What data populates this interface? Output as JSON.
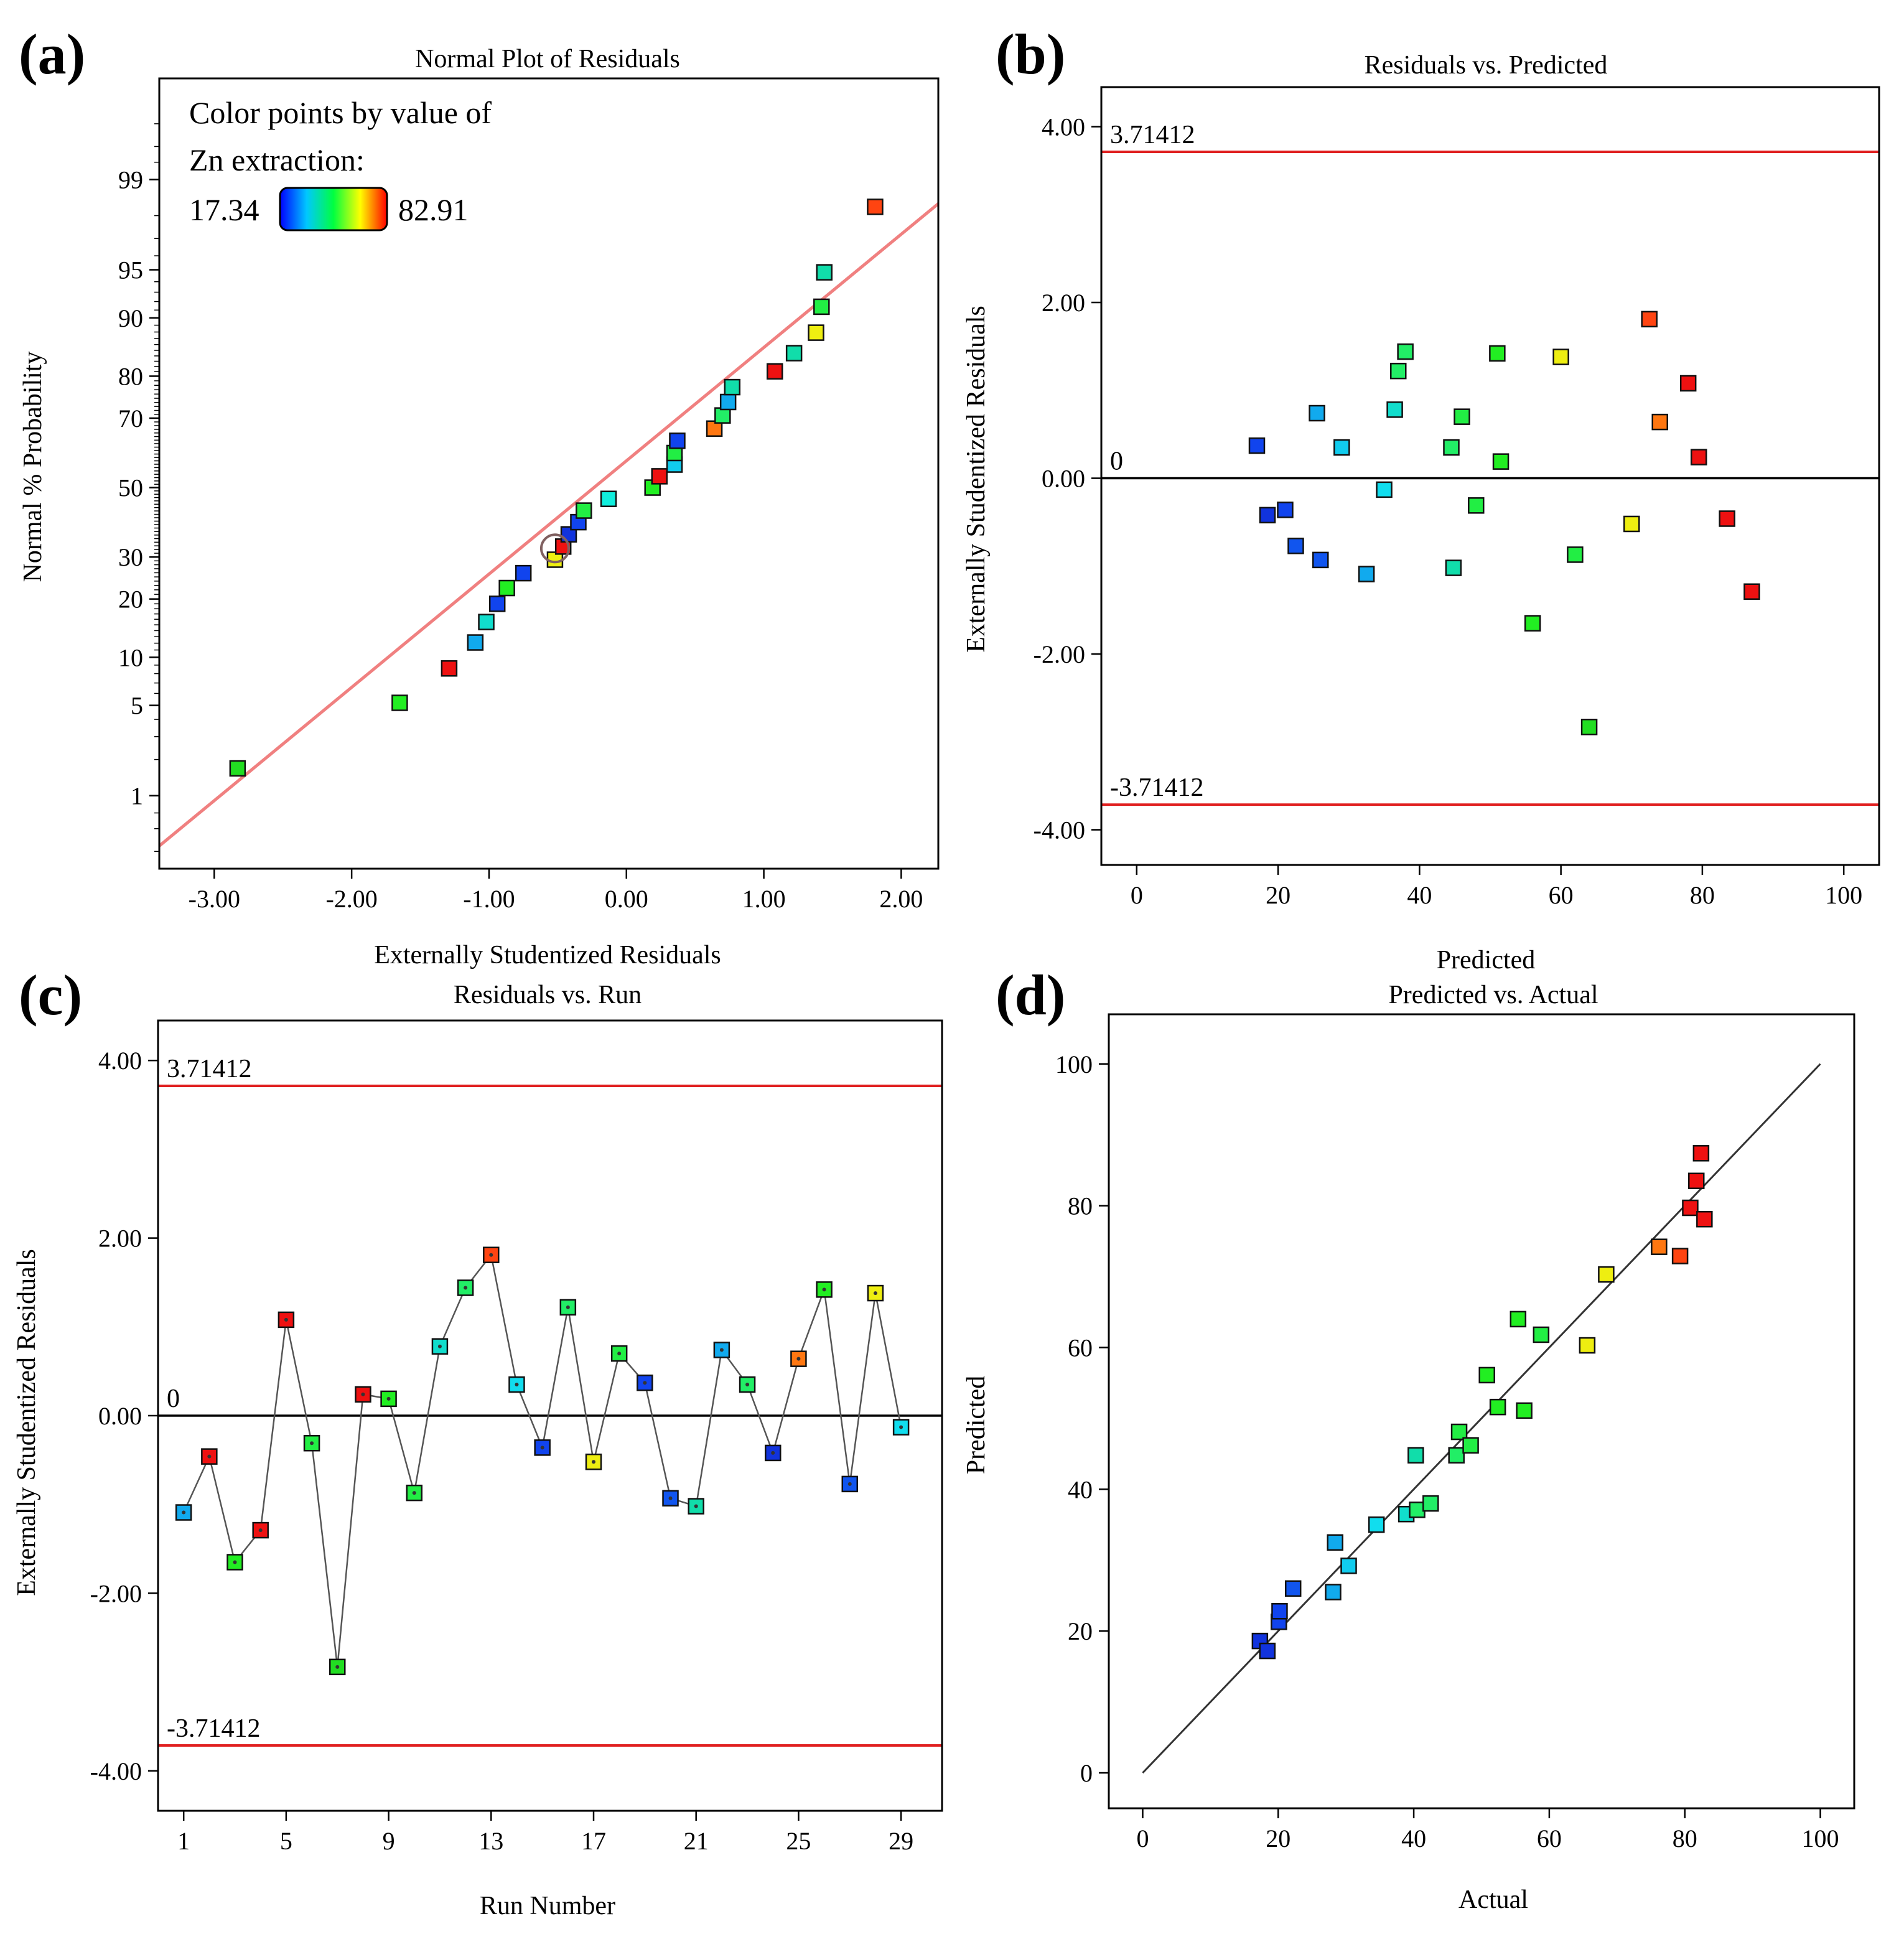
{
  "colors": {
    "fit_line": "#f08080",
    "limit_line": "#e02020",
    "zero_line": "#000000",
    "legend_low": "#2a2aff",
    "legend_high": "#ff2020"
  },
  "legend": {
    "title_line1": "Color points by value of",
    "title_line2": "Zn extraction:",
    "low_label": "17.34",
    "high_label": "82.91",
    "gradient": [
      "#0000ff",
      "#00c8ff",
      "#00ff40",
      "#ffff00",
      "#ff0000"
    ]
  },
  "chart_data": [
    {
      "id": "a",
      "panel_label": "(a)",
      "type": "scatter",
      "title": "Normal Plot of Residuals",
      "xlabel": "Externally Studentized Residuals",
      "ylabel": "Normal % Probability",
      "xlim": [
        -3.4,
        2.27
      ],
      "y_probability_scale": true,
      "ylim_probability": [
        0.2,
        99.9
      ],
      "xticks": [
        -3,
        -2,
        -1,
        0,
        1,
        2
      ],
      "xtick_labels": [
        "-3.00",
        "-2.00",
        "-1.00",
        "0.00",
        "1.00",
        "2.00"
      ],
      "yticks": [
        1,
        5,
        10,
        20,
        30,
        50,
        70,
        80,
        90,
        95,
        99
      ],
      "ytick_labels": [
        "1",
        "5",
        "10",
        "20",
        "30",
        "50",
        "70",
        "80",
        "90",
        "95",
        "99"
      ],
      "fit_line": {
        "x": [
          -3.4,
          2.27
        ],
        "prob": [
          0.34,
          98.4
        ]
      },
      "points": [
        {
          "x": -2.83,
          "p": 1.7,
          "color": "#22dd22"
        },
        {
          "x": -1.65,
          "p": 5.2,
          "color": "#22ee22"
        },
        {
          "x": -1.29,
          "p": 8.6,
          "color": "#ee1111"
        },
        {
          "x": -1.1,
          "p": 12.1,
          "color": "#11aaee"
        },
        {
          "x": -1.02,
          "p": 15.5,
          "color": "#11ddcc"
        },
        {
          "x": -0.94,
          "p": 19.0,
          "color": "#1144ee"
        },
        {
          "x": -0.87,
          "p": 22.4,
          "color": "#22ee22"
        },
        {
          "x": -0.75,
          "p": 25.9,
          "color": "#1144ee"
        },
        {
          "x": -0.52,
          "p": 29.3,
          "color": "#eeee11"
        },
        {
          "x": -0.46,
          "p": 32.8,
          "color": "#ee1111"
        },
        {
          "x": -0.42,
          "p": 36.2,
          "color": "#1133dd"
        },
        {
          "x": -0.35,
          "p": 39.7,
          "color": "#1144ee"
        },
        {
          "x": -0.31,
          "p": 43.1,
          "color": "#22ee44"
        },
        {
          "x": -0.13,
          "p": 46.6,
          "color": "#11eedd"
        },
        {
          "x": 0.19,
          "p": 50.0,
          "color": "#22ee22"
        },
        {
          "x": 0.24,
          "p": 53.4,
          "color": "#ee1111"
        },
        {
          "x": 0.35,
          "p": 56.9,
          "color": "#11ccee"
        },
        {
          "x": 0.35,
          "p": 60.3,
          "color": "#22ee44"
        },
        {
          "x": 0.37,
          "p": 63.8,
          "color": "#1144ee"
        },
        {
          "x": 0.64,
          "p": 67.2,
          "color": "#ff7711"
        },
        {
          "x": 0.7,
          "p": 70.7,
          "color": "#22ee66"
        },
        {
          "x": 0.74,
          "p": 74.1,
          "color": "#11aaee"
        },
        {
          "x": 0.77,
          "p": 77.6,
          "color": "#11ddaa"
        },
        {
          "x": 1.08,
          "p": 81.0,
          "color": "#ee1111"
        },
        {
          "x": 1.22,
          "p": 84.5,
          "color": "#11ddaa"
        },
        {
          "x": 1.38,
          "p": 87.9,
          "color": "#eeee11"
        },
        {
          "x": 1.42,
          "p": 91.4,
          "color": "#22ee44"
        },
        {
          "x": 1.44,
          "p": 94.8,
          "color": "#11ddaa"
        },
        {
          "x": 1.81,
          "p": 98.3,
          "color": "#ff4411"
        }
      ],
      "circled_point": {
        "x": -0.52,
        "p": 32.3
      }
    },
    {
      "id": "b",
      "panel_label": "(b)",
      "type": "scatter",
      "title": "Residuals vs. Predicted",
      "xlabel": "Predicted",
      "ylabel": "Externally Studentized Residuals",
      "xlim": [
        -5,
        105
      ],
      "ylim": [
        -4.4,
        4.45
      ],
      "xticks": [
        0,
        20,
        40,
        60,
        80,
        100
      ],
      "xtick_labels": [
        "0",
        "20",
        "40",
        "60",
        "80",
        "100"
      ],
      "yticks": [
        -4,
        -2,
        0,
        2,
        4
      ],
      "ytick_labels": [
        "-4.00",
        "-2.00",
        "0.00",
        "2.00",
        "4.00"
      ],
      "upper_limit": 3.71412,
      "upper_label": "3.71412",
      "lower_limit": -3.71412,
      "lower_label": "-3.71412",
      "zero_label": "0",
      "points": [
        {
          "x": 17.0,
          "y": 0.37,
          "color": "#1144ee"
        },
        {
          "x": 18.5,
          "y": -0.42,
          "color": "#1133dd"
        },
        {
          "x": 21.0,
          "y": -0.36,
          "color": "#1144ee"
        },
        {
          "x": 22.5,
          "y": -0.77,
          "color": "#1155ee"
        },
        {
          "x": 25.5,
          "y": 0.74,
          "color": "#11aaee"
        },
        {
          "x": 26.0,
          "y": -0.93,
          "color": "#1155ee"
        },
        {
          "x": 29.0,
          "y": 0.35,
          "color": "#11ccee"
        },
        {
          "x": 32.5,
          "y": -1.09,
          "color": "#11aaee"
        },
        {
          "x": 35.0,
          "y": -0.13,
          "color": "#11ddee"
        },
        {
          "x": 36.5,
          "y": 0.78,
          "color": "#11ddcc"
        },
        {
          "x": 37.0,
          "y": 1.22,
          "color": "#22ee66"
        },
        {
          "x": 38.0,
          "y": 1.44,
          "color": "#22ee66"
        },
        {
          "x": 44.5,
          "y": 0.35,
          "color": "#22ee66"
        },
        {
          "x": 44.8,
          "y": -1.02,
          "color": "#11ddaa"
        },
        {
          "x": 46.0,
          "y": 0.7,
          "color": "#22ee44"
        },
        {
          "x": 48.0,
          "y": -0.31,
          "color": "#22ee44"
        },
        {
          "x": 51.0,
          "y": 1.42,
          "color": "#22ee22"
        },
        {
          "x": 51.5,
          "y": 0.19,
          "color": "#22ee22"
        },
        {
          "x": 56.0,
          "y": -1.65,
          "color": "#22ee22"
        },
        {
          "x": 60.0,
          "y": 1.38,
          "color": "#eeee11"
        },
        {
          "x": 62.0,
          "y": -0.87,
          "color": "#22ee44"
        },
        {
          "x": 64.0,
          "y": -2.83,
          "color": "#22dd22"
        },
        {
          "x": 70.0,
          "y": -0.52,
          "color": "#eeee11"
        },
        {
          "x": 72.5,
          "y": 1.81,
          "color": "#ff4411"
        },
        {
          "x": 74.0,
          "y": 0.64,
          "color": "#ff7711"
        },
        {
          "x": 78.0,
          "y": 1.08,
          "color": "#ee1111"
        },
        {
          "x": 79.5,
          "y": 0.24,
          "color": "#ee1111"
        },
        {
          "x": 83.5,
          "y": -0.46,
          "color": "#ee1111"
        },
        {
          "x": 87.0,
          "y": -1.29,
          "color": "#ee1111"
        }
      ]
    },
    {
      "id": "c",
      "panel_label": "(c)",
      "type": "line",
      "title": "Residuals vs. Run",
      "xlabel": "Run Number",
      "ylabel": "Externally Studentized Residuals",
      "xlim": [
        0,
        30.6
      ],
      "ylim": [
        -4.45,
        4.45
      ],
      "xticks": [
        1,
        5,
        9,
        13,
        17,
        21,
        25,
        29
      ],
      "xtick_labels": [
        "1",
        "5",
        "9",
        "13",
        "17",
        "21",
        "25",
        "29"
      ],
      "yticks": [
        -4,
        -2,
        0,
        2,
        4
      ],
      "ytick_labels": [
        "-4.00",
        "-2.00",
        "0.00",
        "2.00",
        "4.00"
      ],
      "upper_limit": 3.71412,
      "upper_label": "3.71412",
      "lower_limit": -3.71412,
      "lower_label": "-3.71412",
      "zero_label": "0",
      "x": [
        1,
        2,
        3,
        4,
        5,
        6,
        7,
        8,
        9,
        10,
        11,
        12,
        13,
        14,
        15,
        16,
        17,
        18,
        19,
        20,
        21,
        22,
        23,
        24,
        25,
        26,
        27,
        28,
        29
      ],
      "values": [
        -1.09,
        -0.46,
        -1.65,
        -1.29,
        1.08,
        -0.31,
        -2.83,
        0.24,
        0.19,
        -0.87,
        0.78,
        1.44,
        1.81,
        0.35,
        -0.36,
        1.22,
        -0.52,
        0.7,
        0.37,
        -0.93,
        -1.02,
        0.74,
        0.35,
        -0.42,
        0.64,
        1.42,
        -0.77,
        1.38,
        -0.13
      ],
      "colors": [
        "#11aaee",
        "#ee1111",
        "#22ee22",
        "#ee1111",
        "#ee1111",
        "#22ee44",
        "#22dd22",
        "#ee1111",
        "#22ee22",
        "#22ee44",
        "#11ddcc",
        "#22ee66",
        "#ff4411",
        "#11ddee",
        "#1144ee",
        "#22ee66",
        "#eeee11",
        "#22ee44",
        "#1144ee",
        "#1155ee",
        "#11ddaa",
        "#11aaee",
        "#22ee66",
        "#1133dd",
        "#ff7711",
        "#22ee22",
        "#1155ee",
        "#eeee11",
        "#11ddee"
      ]
    },
    {
      "id": "d",
      "panel_label": "(d)",
      "type": "scatter",
      "title": "Predicted vs. Actual",
      "xlabel": "Actual",
      "ylabel": "Predicted",
      "xlim": [
        -5,
        105
      ],
      "ylim": [
        -5,
        107
      ],
      "xticks": [
        0,
        20,
        40,
        60,
        80,
        100
      ],
      "xtick_labels": [
        "0",
        "20",
        "40",
        "60",
        "80",
        "100"
      ],
      "yticks": [
        0,
        20,
        40,
        60,
        80,
        100
      ],
      "ytick_labels": [
        "0",
        "20",
        "40",
        "60",
        "80",
        "100"
      ],
      "fit_line": {
        "x": [
          0,
          100
        ],
        "y": [
          0,
          100
        ]
      },
      "points": [
        {
          "x": 17.3,
          "y": 18.6,
          "color": "#1133dd"
        },
        {
          "x": 18.4,
          "y": 17.2,
          "color": "#1133dd"
        },
        {
          "x": 20.1,
          "y": 21.3,
          "color": "#1144ee"
        },
        {
          "x": 20.2,
          "y": 22.8,
          "color": "#1144ee"
        },
        {
          "x": 22.2,
          "y": 26.0,
          "color": "#1155ee"
        },
        {
          "x": 28.1,
          "y": 25.5,
          "color": "#11aaee"
        },
        {
          "x": 28.4,
          "y": 32.5,
          "color": "#11aaee"
        },
        {
          "x": 30.4,
          "y": 29.2,
          "color": "#11ccee"
        },
        {
          "x": 34.5,
          "y": 35.0,
          "color": "#11ddee"
        },
        {
          "x": 38.9,
          "y": 36.5,
          "color": "#11ddcc"
        },
        {
          "x": 40.5,
          "y": 37.1,
          "color": "#22ee66"
        },
        {
          "x": 42.5,
          "y": 38.0,
          "color": "#22ee66"
        },
        {
          "x": 40.3,
          "y": 44.8,
          "color": "#11ddaa"
        },
        {
          "x": 46.3,
          "y": 44.8,
          "color": "#22ee66"
        },
        {
          "x": 46.7,
          "y": 48.1,
          "color": "#22ee44"
        },
        {
          "x": 48.4,
          "y": 46.2,
          "color": "#22ee44"
        },
        {
          "x": 50.8,
          "y": 56.1,
          "color": "#22ee22"
        },
        {
          "x": 52.4,
          "y": 51.6,
          "color": "#22ee22"
        },
        {
          "x": 55.4,
          "y": 64.0,
          "color": "#22ee22"
        },
        {
          "x": 56.3,
          "y": 51.1,
          "color": "#22ee22"
        },
        {
          "x": 58.8,
          "y": 61.8,
          "color": "#22ee44"
        },
        {
          "x": 65.6,
          "y": 60.3,
          "color": "#eeee11"
        },
        {
          "x": 68.4,
          "y": 70.3,
          "color": "#eeee11"
        },
        {
          "x": 76.2,
          "y": 74.2,
          "color": "#ff7711"
        },
        {
          "x": 79.3,
          "y": 72.9,
          "color": "#ff4411"
        },
        {
          "x": 80.8,
          "y": 79.7,
          "color": "#ee1111"
        },
        {
          "x": 81.7,
          "y": 83.5,
          "color": "#ee1111"
        },
        {
          "x": 82.9,
          "y": 78.1,
          "color": "#ee1111"
        },
        {
          "x": 82.4,
          "y": 87.4,
          "color": "#ee1111"
        }
      ]
    }
  ]
}
